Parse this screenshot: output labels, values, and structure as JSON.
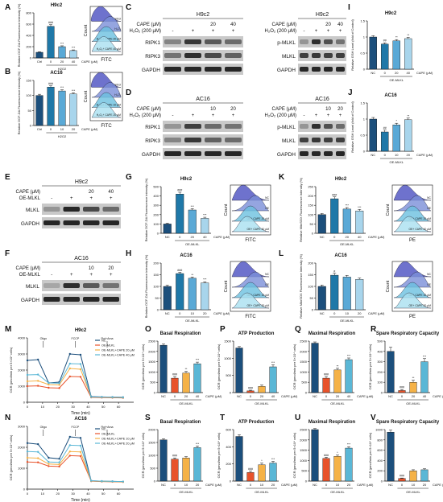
{
  "figure": {
    "chart_data": [
      {
        "id": "A",
        "type": "bar",
        "title": "H9c2",
        "ylabel": "Relative DCF-DA Fluorescence intensity (%)",
        "xlabel": "H2O2",
        "categories": [
          "Ctrl",
          "0",
          "20",
          "40"
        ],
        "values": [
          100,
          560,
          200,
          130
        ],
        "errors": [
          10,
          30,
          15,
          12
        ],
        "ylim": [
          0,
          800
        ],
        "yticks": [
          0,
          200,
          400,
          600,
          800
        ],
        "marks": [
          "",
          "###",
          "***",
          "***"
        ],
        "colors": [
          "#1c4f7c",
          "#1f78a8",
          "#5aa9d6",
          "#a8d5ec"
        ]
      },
      {
        "id": "B",
        "type": "bar",
        "title": "AC16",
        "ylabel": "Relative DCF-DA Fluorescence intensity (%)",
        "xlabel": "H2O2",
        "categories": [
          "Ctrl",
          "0",
          "10",
          "20"
        ],
        "values": [
          100,
          128,
          115,
          105
        ],
        "errors": [
          4,
          4,
          4,
          4
        ],
        "ylim": [
          0,
          150
        ],
        "yticks": [
          0,
          50,
          100,
          150
        ],
        "marks": [
          "",
          "###",
          "***",
          "***"
        ],
        "colors": [
          "#1c4f7c",
          "#1f78a8",
          "#5aa9d6",
          "#a8d5ec"
        ]
      },
      {
        "id": "G",
        "type": "bar",
        "title": "H9c2",
        "ylabel": "Relative DCF-DA Fluorescence intensity (%)",
        "xlabel": "OE-MLKL",
        "categories": [
          "NC",
          "0",
          "20",
          "40"
        ],
        "values": [
          100,
          420,
          250,
          160
        ],
        "errors": [
          8,
          20,
          15,
          12
        ],
        "ylim": [
          0,
          500
        ],
        "yticks": [
          0,
          100,
          200,
          300,
          400,
          500
        ],
        "marks": [
          "",
          "###",
          "***",
          "***"
        ],
        "colors": [
          "#1c4f7c",
          "#1f78a8",
          "#5aa9d6",
          "#a8d5ec"
        ]
      },
      {
        "id": "H",
        "type": "bar",
        "title": "AC16",
        "ylabel": "Relative DCF-DA Fluorescence intensity (%)",
        "xlabel": "OE-MLKL",
        "categories": [
          "NC",
          "0",
          "10",
          "20"
        ],
        "values": [
          100,
          155,
          135,
          115
        ],
        "errors": [
          5,
          6,
          5,
          5
        ],
        "ylim": [
          0,
          200
        ],
        "yticks": [
          0,
          50,
          100,
          150,
          200
        ],
        "marks": [
          "",
          "###",
          "**",
          "***"
        ],
        "colors": [
          "#1c4f7c",
          "#1f78a8",
          "#5aa9d6",
          "#a8d5ec"
        ]
      },
      {
        "id": "I",
        "type": "bar",
        "title": "H9c2",
        "ylabel": "Relative GSH Level (fold of Control)",
        "xlabel": "OE-MLKL",
        "categories": [
          "NC",
          "0",
          "20",
          "40"
        ],
        "values": [
          1.0,
          0.78,
          0.88,
          0.95
        ],
        "errors": [
          0.04,
          0.04,
          0.04,
          0.04
        ],
        "ylim": [
          0,
          1.5
        ],
        "yticks": [
          0,
          0.5,
          1.0,
          1.5
        ],
        "marks": [
          "",
          "##",
          "**",
          "**"
        ],
        "colors": [
          "#1c4f7c",
          "#1f78a8",
          "#5aa9d6",
          "#a8d5ec"
        ]
      },
      {
        "id": "J",
        "type": "bar",
        "title": "AC16",
        "ylabel": "Relative GSH Level (fold of Control)",
        "xlabel": "OE-MLKL",
        "categories": [
          "NC",
          "0",
          "10",
          "20"
        ],
        "values": [
          1.0,
          0.6,
          0.82,
          0.98
        ],
        "errors": [
          0.05,
          0.06,
          0.05,
          0.05
        ],
        "ylim": [
          0,
          1.5
        ],
        "yticks": [
          0,
          0.5,
          1.0,
          1.5
        ],
        "marks": [
          "",
          "##",
          "*",
          "**"
        ],
        "colors": [
          "#1c4f7c",
          "#1f78a8",
          "#5aa9d6",
          "#a8d5ec"
        ]
      },
      {
        "id": "K",
        "type": "bar",
        "title": "H9c2",
        "ylabel": "Relative MitoSOX Fluorescence intensity (%)",
        "xlabel": "OE-MLKL",
        "categories": [
          "NC",
          "0",
          "20",
          "40"
        ],
        "values": [
          100,
          185,
          130,
          120
        ],
        "errors": [
          6,
          10,
          8,
          8
        ],
        "ylim": [
          0,
          250
        ],
        "yticks": [
          0,
          50,
          100,
          150,
          200,
          250
        ],
        "marks": [
          "",
          "###",
          "***",
          "***"
        ],
        "colors": [
          "#1c4f7c",
          "#1f78a8",
          "#5aa9d6",
          "#a8d5ec"
        ]
      },
      {
        "id": "L",
        "type": "bar",
        "title": "AC16",
        "ylabel": "Relative MitoSOX Fluorescence intensity (%)",
        "xlabel": "OE-MLKL",
        "categories": [
          "NC",
          "0",
          "10",
          "20"
        ],
        "values": [
          100,
          148,
          140,
          130
        ],
        "errors": [
          6,
          8,
          7,
          6
        ],
        "ylim": [
          0,
          200
        ],
        "yticks": [
          0,
          50,
          100,
          150,
          200
        ],
        "marks": [
          "",
          "#",
          "",
          ""
        ],
        "colors": [
          "#1c4f7c",
          "#1f78a8",
          "#5aa9d6",
          "#a8d5ec"
        ]
      },
      {
        "id": "O",
        "type": "bar",
        "title": "Basal Respiration",
        "ylabel": "OCR (pmol/min per 5×10⁴ cells)",
        "xlabel": "OE-MLKL",
        "categories": [
          "NC",
          "0",
          "20",
          "40"
        ],
        "values": [
          2300,
          700,
          950,
          1400
        ],
        "errors": [
          60,
          80,
          80,
          80
        ],
        "ylim": [
          0,
          2500
        ],
        "yticks": [
          0,
          500,
          1000,
          1500,
          2000,
          2500
        ],
        "marks": [
          "",
          "###",
          "**",
          "***"
        ],
        "colors": [
          "#1c4f7c",
          "#e8532b",
          "#f5b247",
          "#5ab7d6"
        ]
      },
      {
        "id": "P",
        "type": "bar",
        "title": "ATP Production",
        "ylabel": "OCR (pmol/min per 5×10⁴ cells)",
        "xlabel": "OE-MLKL",
        "categories": [
          "NC",
          "0",
          "20",
          "40"
        ],
        "values": [
          1300,
          50,
          180,
          750
        ],
        "errors": [
          40,
          20,
          40,
          60
        ],
        "ylim": [
          0,
          1500
        ],
        "yticks": [
          0,
          500,
          1000,
          1500
        ],
        "marks": [
          "",
          "###",
          "",
          "***"
        ],
        "colors": [
          "#1c4f7c",
          "#e8532b",
          "#f5b247",
          "#5ab7d6"
        ]
      },
      {
        "id": "Q",
        "type": "bar",
        "title": "Maximal Respiration",
        "ylabel": "OCR (pmol/min per 5×10⁴ cells)",
        "xlabel": "OE-MLKL",
        "categories": [
          "NC",
          "0",
          "20",
          "40"
        ],
        "values": [
          2400,
          700,
          1100,
          1600
        ],
        "errors": [
          60,
          80,
          80,
          80
        ],
        "ylim": [
          0,
          2500
        ],
        "yticks": [
          0,
          500,
          1000,
          1500,
          2000,
          2500
        ],
        "marks": [
          "",
          "###",
          "**",
          "***"
        ],
        "colors": [
          "#1c4f7c",
          "#e8532b",
          "#f5b247",
          "#5ab7d6"
        ]
      },
      {
        "id": "R",
        "type": "bar",
        "title": "Spare Respiratory Capacity",
        "ylabel": "OCR (pmol/min per 5×10⁴ cells)",
        "xlabel": "OE-MLKL",
        "categories": [
          "NC",
          "0",
          "20",
          "40"
        ],
        "values": [
          400,
          20,
          100,
          300
        ],
        "errors": [
          40,
          10,
          20,
          30
        ],
        "ylim": [
          0,
          500
        ],
        "yticks": [
          0,
          100,
          200,
          300,
          400,
          500
        ],
        "marks": [
          "",
          "###",
          "**",
          "***"
        ],
        "colors": [
          "#1c4f7c",
          "#e8532b",
          "#f5b247",
          "#5ab7d6"
        ]
      },
      {
        "id": "S",
        "type": "bar",
        "title": "Basal Respiration",
        "ylabel": "OCR (pmol/min per 5×10⁴ cells)",
        "xlabel": "OE-MLKL",
        "categories": [
          "NC",
          "0",
          "10",
          "20"
        ],
        "values": [
          1600,
          850,
          900,
          1300
        ],
        "errors": [
          40,
          50,
          50,
          60
        ],
        "ylim": [
          0,
          2000
        ],
        "yticks": [
          0,
          500,
          1000,
          1500,
          2000
        ],
        "marks": [
          "",
          "###",
          "",
          "***"
        ],
        "colors": [
          "#1c4f7c",
          "#e8532b",
          "#f5b247",
          "#5ab7d6"
        ]
      },
      {
        "id": "T",
        "type": "bar",
        "title": "ATP Production",
        "ylabel": "OCR (pmol/min per 5×10⁴ cells)",
        "xlabel": "OE-MLKL",
        "categories": [
          "NC",
          "0",
          "10",
          "20"
        ],
        "values": [
          520,
          100,
          190,
          210
        ],
        "errors": [
          20,
          15,
          20,
          20
        ],
        "ylim": [
          0,
          600
        ],
        "yticks": [
          0,
          200,
          400,
          600
        ],
        "marks": [
          "",
          "###",
          "*",
          "***"
        ],
        "colors": [
          "#1c4f7c",
          "#e8532b",
          "#f5b247",
          "#5ab7d6"
        ]
      },
      {
        "id": "U",
        "type": "bar",
        "title": "Maximal Respiration",
        "ylabel": "OCR (pmol/min per 5×10⁴ cells)",
        "xlabel": "OE-MLKL",
        "categories": [
          "NC",
          "0",
          "10",
          "20"
        ],
        "values": [
          2500,
          1100,
          1200,
          1600
        ],
        "errors": [
          50,
          60,
          60,
          70
        ],
        "ylim": [
          0,
          2500
        ],
        "yticks": [
          0,
          500,
          1000,
          1500,
          2000,
          2500
        ],
        "marks": [
          "",
          "###",
          "*",
          "***"
        ],
        "colors": [
          "#1c4f7c",
          "#e8532b",
          "#f5b247",
          "#5ab7d6"
        ]
      },
      {
        "id": "V",
        "type": "bar",
        "title": "Spare Respiratory Capacity",
        "ylabel": "OCR (pmol/min per 5×10⁴ cells)",
        "xlabel": "OE-MLKL",
        "categories": [
          "NC",
          "0",
          "10",
          "20"
        ],
        "values": [
          950,
          50,
          200,
          220
        ],
        "errors": [
          40,
          10,
          20,
          20
        ],
        "ylim": [
          0,
          1000
        ],
        "yticks": [
          0,
          200,
          400,
          600,
          800,
          1000
        ],
        "marks": [
          "",
          "###",
          "",
          ""
        ],
        "colors": [
          "#1c4f7c",
          "#e8532b",
          "#f5b247",
          "#5ab7d6"
        ]
      },
      {
        "id": "M",
        "type": "line",
        "title": "H9c2",
        "ylabel": "OCR (pmol/min per 5×10⁴ cells)",
        "xlabel": "Time (min)",
        "x": [
          0,
          7,
          14,
          21,
          28,
          35,
          42,
          49,
          56,
          63
        ],
        "xticks": [
          0,
          10,
          20,
          30,
          40,
          50,
          60
        ],
        "ylim": [
          0,
          4000
        ],
        "yticks": [
          0,
          1000,
          2000,
          3000,
          4000
        ],
        "injections": [
          "Oligo",
          "FCCP",
          "Rot+Ama"
        ],
        "legend": "top-right",
        "series": [
          {
            "name": "NC",
            "color": "#1c4f7c",
            "values": [
              2600,
              2650,
              1200,
              1250,
              3000,
              2950,
              350,
              330,
              320,
              310
            ]
          },
          {
            "name": "OE-MLKL",
            "color": "#e8532b",
            "values": [
              1000,
              1020,
              900,
              880,
              1600,
              1580,
              300,
              290,
              280,
              270
            ]
          },
          {
            "name": "OE-MLKL+CAPE 20 μM",
            "color": "#f5b247",
            "values": [
              1300,
              1330,
              1100,
              1080,
              2100,
              2050,
              320,
              310,
              300,
              290
            ]
          },
          {
            "name": "OE-MLKL+CAPE 40 μM",
            "color": "#5ab7d6",
            "values": [
              1700,
              1720,
              1200,
              1180,
              2400,
              2380,
              330,
              320,
              310,
              300
            ]
          }
        ]
      },
      {
        "id": "N",
        "type": "line",
        "title": "AC16",
        "ylabel": "OCR (pmol/min per 5×10⁴ cells)",
        "xlabel": "Time (min)",
        "x": [
          0,
          7,
          14,
          21,
          28,
          35,
          42,
          49,
          56,
          63
        ],
        "xticks": [
          0,
          10,
          20,
          30,
          40,
          50,
          60
        ],
        "ylim": [
          0,
          3000
        ],
        "yticks": [
          0,
          1000,
          2000,
          3000
        ],
        "injections": [
          "Oligo",
          "FCCP",
          "Rot+Ama"
        ],
        "legend": "top-right",
        "series": [
          {
            "name": "NC",
            "color": "#1c4f7c",
            "values": [
              2200,
              2150,
              1500,
              1450,
              2500,
              2450,
              400,
              380,
              370,
              360
            ]
          },
          {
            "name": "OE-MLKL",
            "color": "#e8532b",
            "values": [
              1300,
              1280,
              1100,
              1080,
              1600,
              1580,
              380,
              360,
              350,
              340
            ]
          },
          {
            "name": "OE-MLKL+CAPE 10 μM",
            "color": "#f5b247",
            "values": [
              1500,
              1480,
              1200,
              1180,
              1800,
              1780,
              390,
              370,
              360,
              350
            ]
          },
          {
            "name": "OE-MLKL+CAPE 20 μM",
            "color": "#5ab7d6",
            "values": [
              1800,
              1780,
              1300,
              1280,
              2100,
              2080,
              400,
              380,
              370,
              360
            ]
          }
        ]
      }
    ],
    "letters": [
      "A",
      "B",
      "C",
      "D",
      "E",
      "F",
      "G",
      "H",
      "I",
      "J",
      "K",
      "L",
      "M",
      "N",
      "O",
      "P",
      "Q",
      "R",
      "S",
      "T",
      "U",
      "V"
    ],
    "cape_label": "CAPE (μM)",
    "oe_label": "OE-MLKL",
    "h2o2_label": "H₂O₂",
    "h2o2_conc": "H₂O₂ (200 μM)",
    "gapdh": "GAPDH",
    "fitc": "FITC",
    "pe": "PE",
    "count": "Count",
    "wb_C_left": {
      "title": "H9c2",
      "cape_vals": [
        "",
        "",
        "20",
        "40"
      ],
      "rows": [
        "RIPK1",
        "RIPK3",
        "GAPDH"
      ]
    },
    "wb_C_right": {
      "title": "H9c2",
      "cape_vals": [
        "",
        "",
        "20",
        "40"
      ],
      "rows": [
        "p-MLKL",
        "MLKL",
        "GAPDH"
      ]
    },
    "wb_D_left": {
      "title": "AC16",
      "cape_vals": [
        "",
        "",
        "10",
        "20"
      ],
      "rows": [
        "RIPK1",
        "RIPK3",
        "GAPDH"
      ]
    },
    "wb_D_right": {
      "title": "AC16",
      "cape_vals": [
        "",
        "",
        "10",
        "20"
      ],
      "rows": [
        "p-MLKL",
        "MLKL",
        "GAPDH"
      ]
    },
    "wb_E": {
      "title": "H9c2",
      "cape_vals": [
        "",
        "",
        "20",
        "40"
      ],
      "rows": [
        "MLKL",
        "GAPDH"
      ]
    },
    "wb_F": {
      "title": "AC16",
      "cape_vals": [
        "",
        "",
        "10",
        "20"
      ],
      "rows": [
        "MLKL",
        "GAPDH"
      ]
    },
    "flow_A": {
      "labels": [
        "Control",
        "H₂O₂",
        "H₂O₂+ CAPE 20 μM",
        "H₂O₂+ CAPE 40 μM"
      ]
    },
    "flow_B": {
      "labels": [
        "Control",
        "H₂O₂",
        "H₂O₂+ CAPE 10 μM",
        "H₂O₂+ CAPE 20 μM"
      ]
    },
    "flow_G": {
      "labels": [
        "NC",
        "OE",
        "OE+ CAPE 20 μM",
        "OE+ CAPE 40 μM"
      ]
    },
    "flow_H": {
      "labels": [
        "NC",
        "OE",
        "OE+ CAPE 10 μM",
        "OE+ CAPE 20 μM"
      ]
    },
    "flow_K": {
      "labels": [
        "NC",
        "OE",
        "OE+ CAPE 20 μM",
        "OE+ CAPE 40 μM"
      ]
    },
    "flow_L": {
      "labels": [
        "NC",
        "OE",
        "OE+ CAPE 10 μM",
        "OE+ CAPE 20 μM"
      ]
    }
  }
}
